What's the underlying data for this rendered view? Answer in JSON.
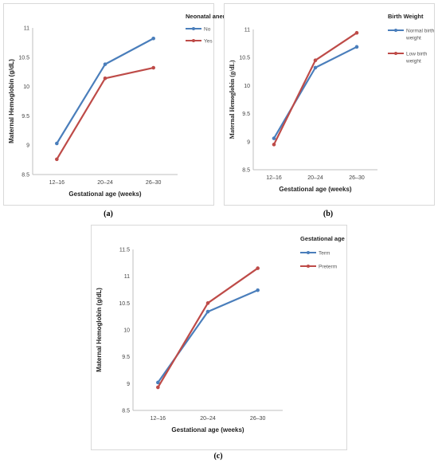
{
  "captions": [
    "(a)",
    "(b)",
    "(c)"
  ],
  "chart_data": [
    {
      "type": "line",
      "categories": [
        "12–16",
        "20–24",
        "26–30"
      ],
      "series": [
        {
          "name": "No",
          "values": [
            9.03,
            10.38,
            10.82
          ],
          "color": "#4a7ebb"
        },
        {
          "name": "Yes",
          "values": [
            8.76,
            10.14,
            10.32
          ],
          "color": "#be4b48"
        }
      ],
      "legend_title": "Neonatal anemia",
      "xlabel": "Gestational age (weeks)",
      "ylabel": "Maternal Hemoglobin (g/dL)",
      "ylim": [
        8.5,
        11
      ],
      "yticks": [
        "8.5",
        "9",
        "9.5",
        "10",
        "10.5",
        "11"
      ],
      "ytick_values": [
        8.5,
        9,
        9.5,
        10,
        10.5,
        11
      ]
    },
    {
      "type": "line",
      "categories": [
        "12–16",
        "20–24",
        "26–30"
      ],
      "series": [
        {
          "name": "Normal birth weight",
          "label_lines": [
            "Normal birth",
            "weight"
          ],
          "values": [
            9.06,
            10.32,
            10.69
          ],
          "color": "#4a7ebb"
        },
        {
          "name": "Low birth weight",
          "label_lines": [
            "Low birth",
            "weight"
          ],
          "values": [
            8.95,
            10.45,
            10.94
          ],
          "color": "#be4b48"
        }
      ],
      "legend_title": "Birth Weight",
      "xlabel": "Gestational age (weeks)",
      "ylabel": "Maternal Hemoglobin (g/dL)",
      "ylim": [
        8.5,
        11
      ],
      "yticks": [
        "8.5",
        "9",
        "9.5",
        "10",
        "10.5",
        "11"
      ],
      "ytick_values": [
        8.5,
        9,
        9.5,
        10,
        10.5,
        11
      ]
    },
    {
      "type": "line",
      "categories": [
        "12–16",
        "20–24",
        "26–30"
      ],
      "series": [
        {
          "name": "Term",
          "values": [
            9.02,
            10.34,
            10.74
          ],
          "color": "#4a7ebb"
        },
        {
          "name": "Preterm",
          "values": [
            8.93,
            10.5,
            11.15
          ],
          "color": "#be4b48"
        }
      ],
      "legend_title": "Gestational age",
      "xlabel": "Gestational age (weeks)",
      "ylabel": "Maternal Hemoglobin (g/dL)",
      "ylim": [
        8.5,
        11.5
      ],
      "yticks": [
        "8.5",
        "9",
        "9.5",
        "10",
        "10.5",
        "11",
        "11.5"
      ],
      "ytick_values": [
        8.5,
        9,
        9.5,
        10,
        10.5,
        11,
        11.5
      ]
    }
  ]
}
